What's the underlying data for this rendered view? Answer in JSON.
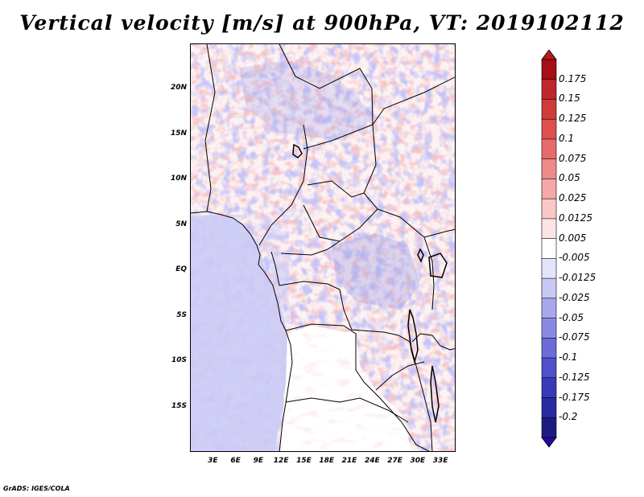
{
  "title": "Vertical velocity [m/s] at 900hPa, VT: 2019102112",
  "map": {
    "region": "Central Africa",
    "lon_range_deg": [
      0,
      35
    ],
    "lat_range_deg": [
      -20,
      25
    ],
    "lat_ticks": [
      {
        "label": "20N",
        "value": 20
      },
      {
        "label": "15N",
        "value": 15
      },
      {
        "label": "10N",
        "value": 10
      },
      {
        "label": "5N",
        "value": 5
      },
      {
        "label": "EQ",
        "value": 0
      },
      {
        "label": "5S",
        "value": -5
      },
      {
        "label": "10S",
        "value": -10
      },
      {
        "label": "15S",
        "value": -15
      }
    ],
    "lon_ticks": [
      {
        "label": "3E",
        "value": 3
      },
      {
        "label": "6E",
        "value": 6
      },
      {
        "label": "9E",
        "value": 9
      },
      {
        "label": "12E",
        "value": 12
      },
      {
        "label": "15E",
        "value": 15
      },
      {
        "label": "18E",
        "value": 18
      },
      {
        "label": "21E",
        "value": 21
      },
      {
        "label": "24E",
        "value": 24
      },
      {
        "label": "27E",
        "value": 27
      },
      {
        "label": "30E",
        "value": 30
      },
      {
        "label": "33E",
        "value": 33
      }
    ]
  },
  "colorbar": {
    "labels": [
      "0.175",
      "0.15",
      "0.125",
      "0.1",
      "0.075",
      "0.05",
      "0.025",
      "0.0125",
      "0.005",
      "-0.005",
      "-0.0125",
      "-0.025",
      "-0.05",
      "-0.075",
      "-0.1",
      "-0.125",
      "-0.175",
      "-0.2"
    ],
    "colors": [
      "#a50f15",
      "#c0272d",
      "#d13a3a",
      "#de5050",
      "#e86b6b",
      "#ef8a8a",
      "#f4a8a8",
      "#f8c8c8",
      "#fbe4e4",
      "#ffffff",
      "#e4e4fb",
      "#c8c8f4",
      "#a8a8ec",
      "#8a8ae4",
      "#6b6bda",
      "#5050cc",
      "#3a3ab8",
      "#2a2aa0",
      "#1c1c80"
    ],
    "top_arrow_color": "#b41c1c",
    "bottom_arrow_color": "#24089a"
  },
  "credit": "GrADS: IGES/COLA"
}
